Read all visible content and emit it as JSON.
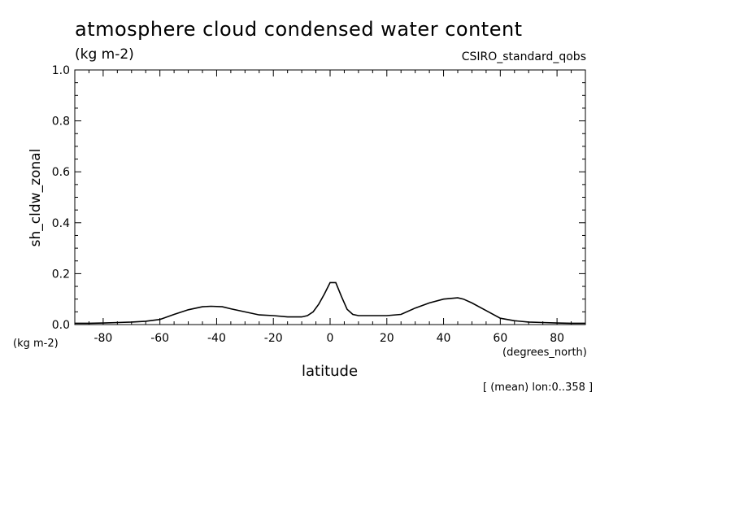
{
  "chart_data": {
    "type": "line",
    "title": "atmosphere cloud condensed water content",
    "units_label": "(kg m-2)",
    "source_label": "CSIRO_standard_qobs",
    "ylabel": "sh_cldw_zonal",
    "y_units_label": "(kg m-2)",
    "xlabel": "latitude",
    "x_units_label": "(degrees_north)",
    "footnote": "[ (mean) lon:0..358 ]",
    "xlim": [
      -90,
      90
    ],
    "ylim": [
      0.0,
      1.0
    ],
    "x_ticks": [
      -80,
      -60,
      -40,
      -20,
      0,
      20,
      40,
      60,
      80
    ],
    "x_tick_labels": [
      "-80",
      "-60",
      "-40",
      "-20",
      "0",
      "20",
      "40",
      "60",
      "80"
    ],
    "y_ticks": [
      0.0,
      0.2,
      0.4,
      0.6,
      0.8,
      1.0
    ],
    "y_tick_labels": [
      "0.0",
      "0.2",
      "0.4",
      "0.6",
      "0.8",
      "1.0"
    ],
    "series": [
      {
        "name": "sh_cldw_zonal",
        "x": [
          -90,
          -85,
          -80,
          -75,
          -70,
          -65,
          -60,
          -55,
          -50,
          -45,
          -42,
          -38,
          -35,
          -30,
          -25,
          -20,
          -15,
          -10,
          -8,
          -6,
          -4,
          -2,
          0,
          2,
          4,
          6,
          8,
          10,
          15,
          20,
          25,
          30,
          35,
          40,
          45,
          47,
          50,
          55,
          60,
          65,
          70,
          75,
          80,
          85,
          90
        ],
        "y": [
          0.005,
          0.005,
          0.006,
          0.008,
          0.01,
          0.013,
          0.02,
          0.04,
          0.058,
          0.07,
          0.072,
          0.07,
          0.062,
          0.05,
          0.038,
          0.035,
          0.03,
          0.03,
          0.035,
          0.05,
          0.08,
          0.12,
          0.165,
          0.165,
          0.11,
          0.06,
          0.04,
          0.035,
          0.035,
          0.035,
          0.04,
          0.065,
          0.085,
          0.1,
          0.105,
          0.1,
          0.085,
          0.055,
          0.025,
          0.015,
          0.01,
          0.008,
          0.006,
          0.005,
          0.005
        ]
      }
    ]
  }
}
